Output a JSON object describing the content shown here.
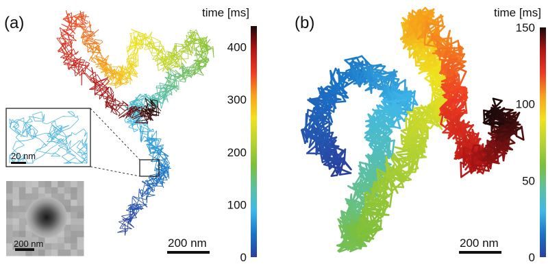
{
  "figure": {
    "panels": [
      {
        "label": "(a)",
        "colorbar": {
          "title": "time [ms]",
          "ticks": [
            "0",
            "100",
            "200",
            "300",
            "400"
          ],
          "range": [
            0,
            440
          ]
        },
        "scalebar": "200 nm",
        "inset_zoom": {
          "scalebar": "20 nm"
        },
        "inset_image": {
          "scalebar": "200 nm"
        }
      },
      {
        "label": "(b)",
        "colorbar": {
          "title": "time [ms]",
          "ticks": [
            "0",
            "50",
            "100",
            "150"
          ],
          "range": [
            0,
            150
          ]
        },
        "scalebar": "200 nm"
      }
    ]
  },
  "colormap": {
    "stops": [
      "#2a3f9e",
      "#1a74c7",
      "#3fb8e8",
      "#5cc0a0",
      "#7dbf3a",
      "#b7d332",
      "#f0e21d",
      "#f7a21b",
      "#ee3b24",
      "#b01515",
      "#1a0a0a"
    ]
  }
}
